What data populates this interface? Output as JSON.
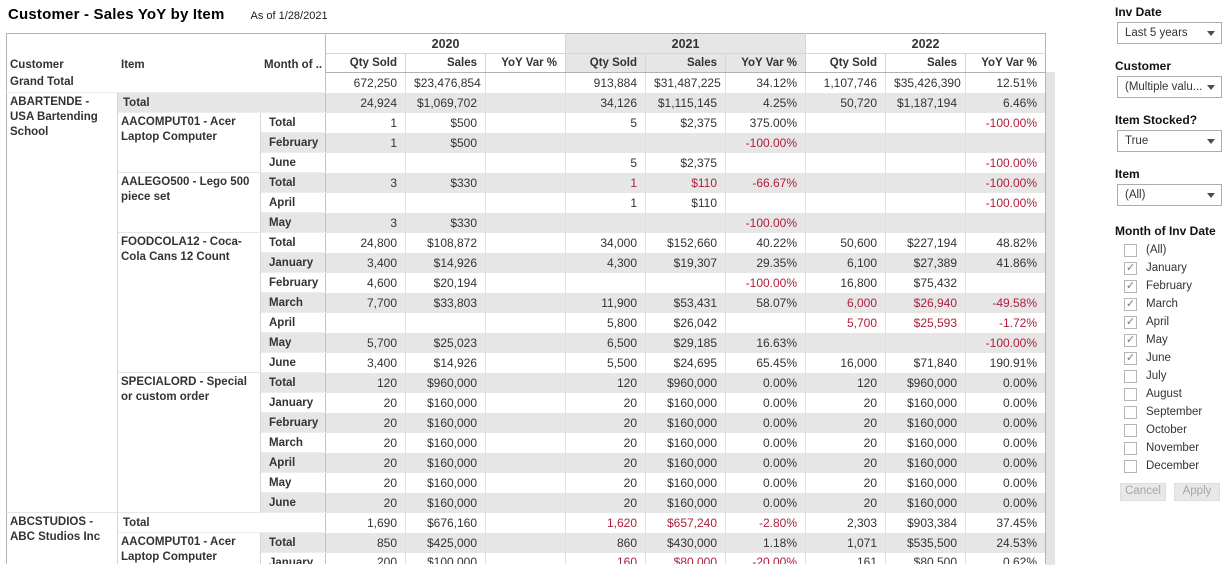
{
  "title": "Customer - Sales YoY by Item",
  "as_of": "As of 1/28/2021",
  "colors": {
    "negative_text": "#b01e3c",
    "row_band": "#e6e6e6",
    "header_shade": "#e6e6e6",
    "text": "#333333"
  },
  "table": {
    "row_headers": [
      "Customer",
      "Item",
      "Month of .."
    ],
    "years": [
      {
        "label": "2020",
        "shaded": false
      },
      {
        "label": "2021",
        "shaded": true
      },
      {
        "label": "2022",
        "shaded": false
      }
    ],
    "measures": [
      "Qty Sold",
      "Sales",
      "YoY Var %"
    ],
    "rows": [
      {
        "type": "grand",
        "label": "Grand Total",
        "values": [
          "672,250",
          "$23,476,854",
          "",
          "913,884",
          "$31,487,225",
          "34.12%",
          "1,107,746",
          "$35,426,390",
          "12.51%"
        ],
        "red": []
      },
      {
        "type": "customer_total",
        "customer": "ABARTENDE - USA Bartending School",
        "customer_rowspan": 21,
        "label": "Total",
        "values": [
          "24,924",
          "$1,069,702",
          "",
          "34,126",
          "$1,115,145",
          "4.25%",
          "50,720",
          "$1,187,194",
          "6.46%"
        ],
        "red": []
      },
      {
        "type": "item_total",
        "item": "AACOMPUT01 - Acer Laptop Computer",
        "item_rowspan": 3,
        "label": "Total",
        "values": [
          "1",
          "$500",
          "",
          "5",
          "$2,375",
          "375.00%",
          "",
          "",
          "-100.00%"
        ],
        "red": [
          8
        ]
      },
      {
        "type": "month",
        "label": "February",
        "values": [
          "1",
          "$500",
          "",
          "",
          "",
          "-100.00%",
          "",
          "",
          ""
        ],
        "red": [
          5
        ]
      },
      {
        "type": "month",
        "label": "June",
        "values": [
          "",
          "",
          "",
          "5",
          "$2,375",
          "",
          "",
          "",
          "-100.00%"
        ],
        "red": [
          8
        ]
      },
      {
        "type": "item_total",
        "item": "AALEGO500 - Lego 500 piece set",
        "item_rowspan": 3,
        "label": "Total",
        "values": [
          "3",
          "$330",
          "",
          "1",
          "$110",
          "-66.67%",
          "",
          "",
          "-100.00%"
        ],
        "red": [
          3,
          4,
          5,
          8
        ]
      },
      {
        "type": "month",
        "label": "April",
        "values": [
          "",
          "",
          "",
          "1",
          "$110",
          "",
          "",
          "",
          "-100.00%"
        ],
        "red": [
          8
        ]
      },
      {
        "type": "month",
        "label": "May",
        "values": [
          "3",
          "$330",
          "",
          "",
          "",
          "-100.00%",
          "",
          "",
          ""
        ],
        "red": [
          5
        ]
      },
      {
        "type": "item_total",
        "item": "FOODCOLA12 - Coca-Cola Cans 12 Count",
        "item_rowspan": 7,
        "label": "Total",
        "values": [
          "24,800",
          "$108,872",
          "",
          "34,000",
          "$152,660",
          "40.22%",
          "50,600",
          "$227,194",
          "48.82%"
        ],
        "red": []
      },
      {
        "type": "month",
        "label": "January",
        "values": [
          "3,400",
          "$14,926",
          "",
          "4,300",
          "$19,307",
          "29.35%",
          "6,100",
          "$27,389",
          "41.86%"
        ],
        "red": []
      },
      {
        "type": "month",
        "label": "February",
        "values": [
          "4,600",
          "$20,194",
          "",
          "",
          "",
          "-100.00%",
          "16,800",
          "$75,432",
          ""
        ],
        "red": [
          5
        ]
      },
      {
        "type": "month",
        "label": "March",
        "values": [
          "7,700",
          "$33,803",
          "",
          "11,900",
          "$53,431",
          "58.07%",
          "6,000",
          "$26,940",
          "-49.58%"
        ],
        "red": [
          6,
          7,
          8
        ]
      },
      {
        "type": "month",
        "label": "April",
        "values": [
          "",
          "",
          "",
          "5,800",
          "$26,042",
          "",
          "5,700",
          "$25,593",
          "-1.72%"
        ],
        "red": [
          6,
          7,
          8
        ]
      },
      {
        "type": "month",
        "label": "May",
        "values": [
          "5,700",
          "$25,023",
          "",
          "6,500",
          "$29,185",
          "16.63%",
          "",
          "",
          "-100.00%"
        ],
        "red": [
          8
        ]
      },
      {
        "type": "month",
        "label": "June",
        "values": [
          "3,400",
          "$14,926",
          "",
          "5,500",
          "$24,695",
          "65.45%",
          "16,000",
          "$71,840",
          "190.91%"
        ],
        "red": []
      },
      {
        "type": "item_total",
        "item": "SPECIALORD - Special or custom order",
        "item_rowspan": 7,
        "label": "Total",
        "values": [
          "120",
          "$960,000",
          "",
          "120",
          "$960,000",
          "0.00%",
          "120",
          "$960,000",
          "0.00%"
        ],
        "red": []
      },
      {
        "type": "month",
        "label": "January",
        "values": [
          "20",
          "$160,000",
          "",
          "20",
          "$160,000",
          "0.00%",
          "20",
          "$160,000",
          "0.00%"
        ],
        "red": []
      },
      {
        "type": "month",
        "label": "February",
        "values": [
          "20",
          "$160,000",
          "",
          "20",
          "$160,000",
          "0.00%",
          "20",
          "$160,000",
          "0.00%"
        ],
        "red": []
      },
      {
        "type": "month",
        "label": "March",
        "values": [
          "20",
          "$160,000",
          "",
          "20",
          "$160,000",
          "0.00%",
          "20",
          "$160,000",
          "0.00%"
        ],
        "red": []
      },
      {
        "type": "month",
        "label": "April",
        "values": [
          "20",
          "$160,000",
          "",
          "20",
          "$160,000",
          "0.00%",
          "20",
          "$160,000",
          "0.00%"
        ],
        "red": []
      },
      {
        "type": "month",
        "label": "May",
        "values": [
          "20",
          "$160,000",
          "",
          "20",
          "$160,000",
          "0.00%",
          "20",
          "$160,000",
          "0.00%"
        ],
        "red": []
      },
      {
        "type": "month",
        "label": "June",
        "values": [
          "20",
          "$160,000",
          "",
          "20",
          "$160,000",
          "0.00%",
          "20",
          "$160,000",
          "0.00%"
        ],
        "red": []
      },
      {
        "type": "customer_total",
        "customer": "ABCSTUDIOS - ABC Studios Inc",
        "customer_rowspan": 3,
        "label": "Total",
        "values": [
          "1,690",
          "$676,160",
          "",
          "1,620",
          "$657,240",
          "-2.80%",
          "2,303",
          "$903,384",
          "37.45%"
        ],
        "red": [
          3,
          4,
          5
        ]
      },
      {
        "type": "item_total",
        "item": "AACOMPUT01 - Acer Laptop Computer",
        "item_rowspan": 2,
        "label": "Total",
        "values": [
          "850",
          "$425,000",
          "",
          "860",
          "$430,000",
          "1.18%",
          "1,071",
          "$535,500",
          "24.53%"
        ],
        "red": []
      },
      {
        "type": "month",
        "label": "January",
        "values": [
          "200",
          "$100,000",
          "",
          "160",
          "$80,000",
          "-20.00%",
          "161",
          "$80,500",
          "0.62%"
        ],
        "red": [
          3,
          4,
          5
        ]
      }
    ]
  },
  "sidebar": {
    "filters": [
      {
        "label": "Inv Date",
        "value": "Last 5 years"
      },
      {
        "label": "Customer",
        "value": "(Multiple valu..."
      },
      {
        "label": "Item Stocked?",
        "value": "True"
      },
      {
        "label": "Item",
        "value": "(All)"
      }
    ],
    "month_filter": {
      "label": "Month of Inv Date",
      "options": [
        {
          "label": "(All)",
          "checked": false
        },
        {
          "label": "January",
          "checked": true
        },
        {
          "label": "February",
          "checked": true
        },
        {
          "label": "March",
          "checked": true
        },
        {
          "label": "April",
          "checked": true
        },
        {
          "label": "May",
          "checked": true
        },
        {
          "label": "June",
          "checked": true
        },
        {
          "label": "July",
          "checked": false
        },
        {
          "label": "August",
          "checked": false
        },
        {
          "label": "September",
          "checked": false
        },
        {
          "label": "October",
          "checked": false
        },
        {
          "label": "November",
          "checked": false
        },
        {
          "label": "December",
          "checked": false
        }
      ]
    },
    "buttons": {
      "cancel": "Cancel",
      "apply": "Apply"
    }
  }
}
